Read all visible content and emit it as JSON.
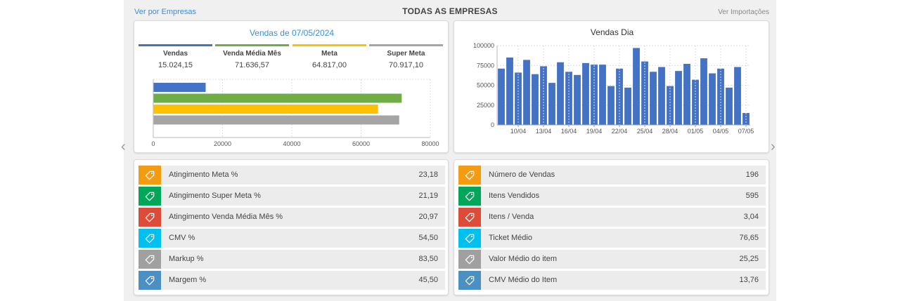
{
  "header": {
    "left_link": "Ver por Empresas",
    "title": "TODAS AS EMPRESAS",
    "right_link": "Ver Importações"
  },
  "summary": {
    "title": "Vendas de 07/05/2024",
    "metrics": [
      {
        "label": "Vendas",
        "value": "15.024,15",
        "color": "#4472c4"
      },
      {
        "label": "Venda Média Mês",
        "value": "71.636,57",
        "color": "#70ad47"
      },
      {
        "label": "Meta",
        "value": "64.817,00",
        "color": "#ffc000"
      },
      {
        "label": "Super Meta",
        "value": "70.917,10",
        "color": "#a5a5a5"
      }
    ]
  },
  "daily": {
    "title": "Vendas Dia"
  },
  "chart_data": [
    {
      "type": "bar",
      "orientation": "horizontal",
      "categories": [
        "Vendas",
        "Venda Média Mês",
        "Meta",
        "Super Meta"
      ],
      "values": [
        15024.15,
        71636.57,
        64817.0,
        70917.1
      ],
      "colors": [
        "#4472c4",
        "#70ad47",
        "#ffc000",
        "#a5a5a5"
      ],
      "xlim": [
        0,
        80000
      ],
      "xticks": [
        "0",
        "20000",
        "40000",
        "60000",
        "80000"
      ],
      "grid": true
    },
    {
      "type": "bar",
      "title": "Vendas Dia",
      "x": [
        "08/04",
        "09/04",
        "10/04",
        "11/04",
        "12/04",
        "13/04",
        "14/04",
        "15/04",
        "16/04",
        "17/04",
        "18/04",
        "19/04",
        "20/04",
        "21/04",
        "22/04",
        "23/04",
        "24/04",
        "25/04",
        "26/04",
        "27/04",
        "28/04",
        "29/04",
        "30/04",
        "01/05",
        "02/05",
        "03/05",
        "04/05",
        "05/05",
        "06/05",
        "07/05"
      ],
      "values": [
        71000,
        85000,
        66000,
        82000,
        64000,
        74000,
        53000,
        79000,
        67000,
        63000,
        78000,
        76000,
        76000,
        49000,
        71000,
        47000,
        97000,
        80000,
        67000,
        73000,
        49000,
        68000,
        77000,
        57000,
        84000,
        65000,
        71000,
        47000,
        73000,
        15000
      ],
      "xticks": [
        "10/04",
        "13/04",
        "16/04",
        "19/04",
        "22/04",
        "25/04",
        "28/04",
        "01/05",
        "04/05",
        "07/05"
      ],
      "yticks": [
        "0",
        "25000",
        "50000",
        "75000",
        "100000"
      ],
      "ylim": [
        0,
        100000
      ],
      "color": "#4472c4",
      "grid": true
    }
  ],
  "kpis_left": [
    {
      "icon": "tag-icon",
      "color": "#f39c12",
      "label": "Atingimento Meta %",
      "value": "23,18"
    },
    {
      "icon": "tag-icon",
      "color": "#00a65a",
      "label": "Atingimento Super Meta %",
      "value": "21,19"
    },
    {
      "icon": "tag-icon",
      "color": "#dd4b39",
      "label": "Atingimento Venda Média Mês %",
      "value": "20,97"
    },
    {
      "icon": "tag-icon",
      "color": "#00c0ef",
      "label": "CMV %",
      "value": "54,50"
    },
    {
      "icon": "tag-icon",
      "color": "#a0a0a0",
      "label": "Markup %",
      "value": "83,50"
    },
    {
      "icon": "tag-icon",
      "color": "#4a90c2",
      "label": "Margem %",
      "value": "45,50"
    }
  ],
  "kpis_right": [
    {
      "icon": "tag-icon",
      "color": "#f39c12",
      "label": "Número de Vendas",
      "value": "196"
    },
    {
      "icon": "tag-icon",
      "color": "#00a65a",
      "label": "Itens Vendidos",
      "value": "595"
    },
    {
      "icon": "tag-icon",
      "color": "#dd4b39",
      "label": "Itens / Venda",
      "value": "3,04"
    },
    {
      "icon": "tag-icon",
      "color": "#00c0ef",
      "label": "Ticket Médio",
      "value": "76,65"
    },
    {
      "icon": "tag-icon",
      "color": "#a0a0a0",
      "label": "Valor Médio do item",
      "value": "25,25"
    },
    {
      "icon": "tag-icon",
      "color": "#4a90c2",
      "label": "CMV Médio do Item",
      "value": "13,76"
    }
  ],
  "nav": {
    "prev_icon": "chevron-left-icon",
    "next_icon": "chevron-right-icon"
  }
}
